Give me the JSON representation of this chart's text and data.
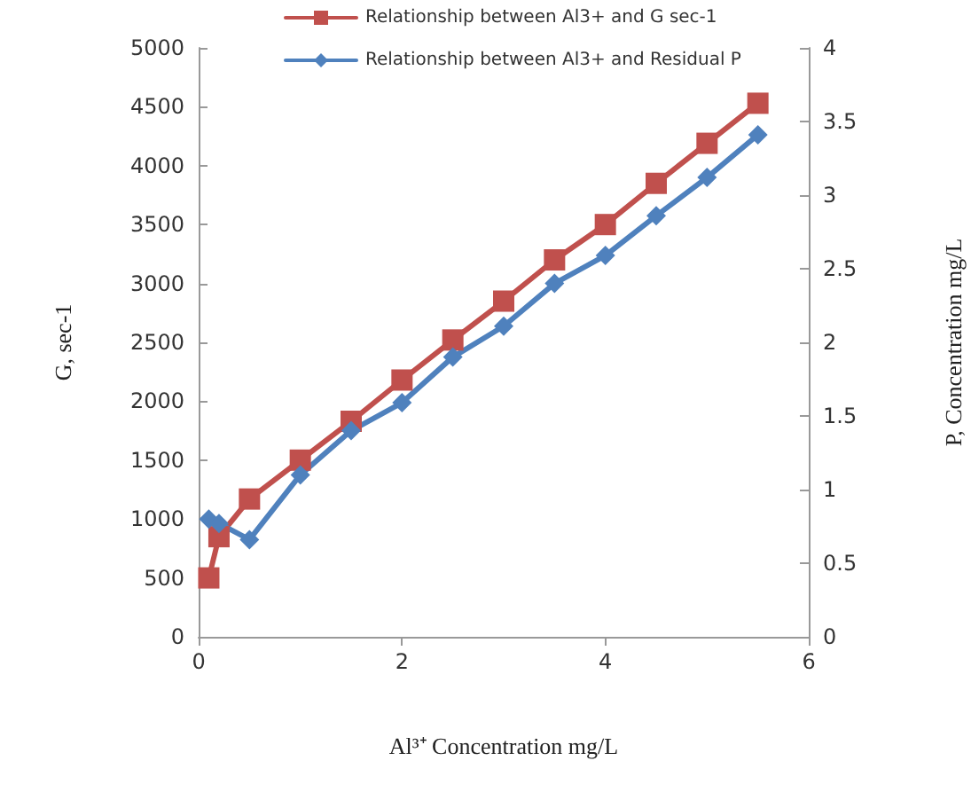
{
  "chart_data": {
    "type": "line",
    "xlabel": "Al³⁺ Concentration mg/L",
    "ylabel": "G, sec-1",
    "y2label": "P, Concentration mg/L",
    "x": [
      0.1,
      0.2,
      0.5,
      1,
      1.5,
      2,
      2.5,
      3,
      3.5,
      4,
      4.5,
      5,
      5.5
    ],
    "series": [
      {
        "name": "Relationship between Al3+ and G sec-1",
        "color": "#c0504d",
        "marker": "square",
        "values": [
          500,
          850,
          1170,
          1500,
          1830,
          2180,
          2520,
          2850,
          3200,
          3500,
          3850,
          4190,
          4530
        ]
      },
      {
        "name": "Relationship between Al3+ and Residual P",
        "color": "#4f81bd",
        "marker": "diamond",
        "axis": "y2",
        "values": [
          0.8,
          0.77,
          0.66,
          1.1,
          1.4,
          1.59,
          1.9,
          2.11,
          2.4,
          2.59,
          2.86,
          3.12,
          3.41
        ]
      }
    ],
    "xlim": [
      0,
      6
    ],
    "xticks": [
      0,
      2,
      4,
      6
    ],
    "ylim": [
      0,
      5000
    ],
    "yticks": [
      0,
      500,
      1000,
      1500,
      2000,
      2500,
      3000,
      3500,
      4000,
      4500,
      5000
    ],
    "y2lim": [
      0,
      4
    ],
    "y2ticks": [
      0,
      0.5,
      1,
      1.5,
      2,
      2.5,
      3,
      3.5,
      4
    ],
    "grid": false,
    "legend": "top",
    "line_style": "solid"
  }
}
